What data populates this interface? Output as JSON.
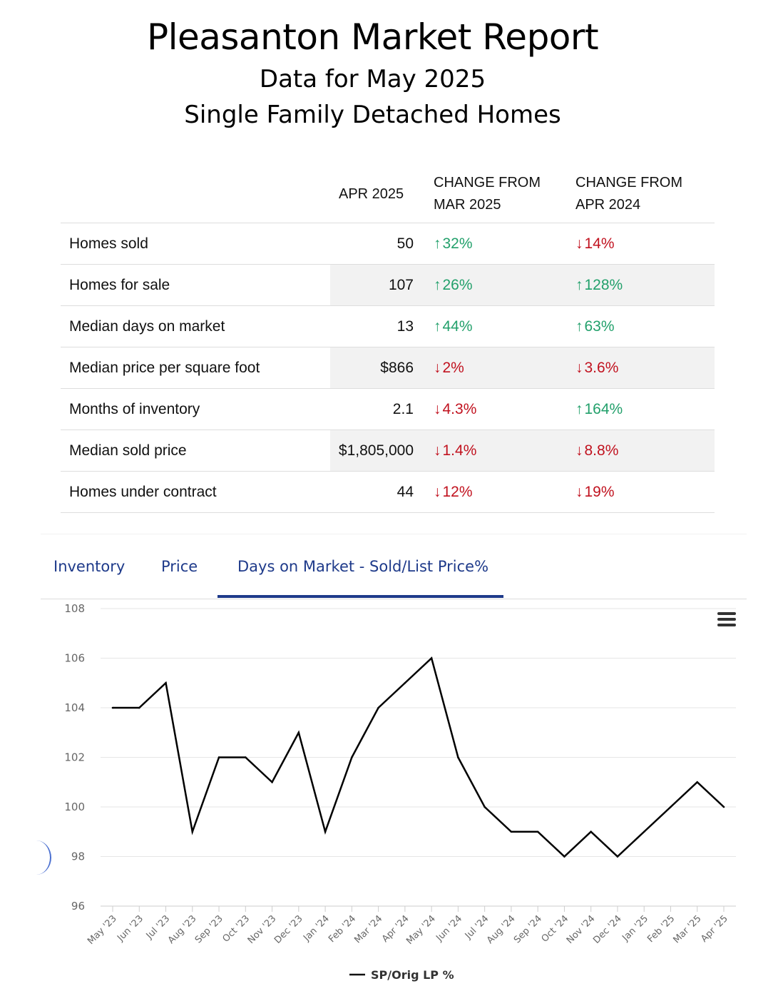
{
  "header": {
    "title": "Pleasanton Market Report",
    "subtitle1": "Data for May 2025",
    "subtitle2": "Single Family Detached Homes"
  },
  "table": {
    "col_value": "APR 2025",
    "col_change1_line1": "CHANGE FROM",
    "col_change1_line2": "MAR 2025",
    "col_change2_line1": "CHANGE FROM",
    "col_change2_line2": "APR 2024",
    "rows": [
      {
        "label": "Homes sold",
        "value": "50",
        "ch1": "32%",
        "ch1_dir": "up",
        "ch2": "14%",
        "ch2_dir": "down"
      },
      {
        "label": "Homes for sale",
        "value": "107",
        "ch1": "26%",
        "ch1_dir": "up",
        "ch2": "128%",
        "ch2_dir": "up"
      },
      {
        "label": "Median days on market",
        "value": "13",
        "ch1": "44%",
        "ch1_dir": "up",
        "ch2": "63%",
        "ch2_dir": "up"
      },
      {
        "label": "Median price per square foot",
        "value": "$866",
        "ch1": "2%",
        "ch1_dir": "down",
        "ch2": "3.6%",
        "ch2_dir": "down"
      },
      {
        "label": "Months of inventory",
        "value": "2.1",
        "ch1": "4.3%",
        "ch1_dir": "down",
        "ch2": "164%",
        "ch2_dir": "up"
      },
      {
        "label": "Median sold price",
        "value": "$1,805,000",
        "ch1": "1.4%",
        "ch1_dir": "down",
        "ch2": "8.8%",
        "ch2_dir": "down"
      },
      {
        "label": "Homes under contract",
        "value": "44",
        "ch1": "12%",
        "ch1_dir": "down",
        "ch2": "19%",
        "ch2_dir": "down"
      }
    ],
    "colors": {
      "up": "#22a06b",
      "down": "#c1121f"
    },
    "icons": {
      "up": "arrow-up-icon",
      "down": "arrow-down-icon"
    }
  },
  "tabs": [
    {
      "label": "Inventory",
      "active": false
    },
    {
      "label": "Price",
      "active": false
    },
    {
      "label": "Days on Market - Sold/List Price%",
      "active": true
    }
  ],
  "accent_color": "#1e3a8a",
  "menu_icon": "hamburger-menu-icon",
  "chart_data": {
    "type": "line",
    "categories": [
      "May '23",
      "Jun '23",
      "Jul '23",
      "Aug '23",
      "Sep '23",
      "Oct '23",
      "Nov '23",
      "Dec '23",
      "Jan '24",
      "Feb '24",
      "Mar '24",
      "Apr '24",
      "May '24",
      "Jun '24",
      "Jul '24",
      "Aug '24",
      "Sep '24",
      "Oct '24",
      "Nov '24",
      "Dec '24",
      "Jan '25",
      "Feb '25",
      "Mar '25",
      "Apr '25"
    ],
    "series": [
      {
        "name": "SP/Orig LP %",
        "values": [
          104,
          104,
          105,
          99,
          102,
          102,
          101,
          103,
          99,
          102,
          104,
          105,
          106,
          102,
          100,
          99,
          99,
          98,
          99,
          98,
          99,
          100,
          101,
          100
        ]
      }
    ],
    "yticks": [
      96,
      98,
      100,
      102,
      104,
      106,
      108
    ],
    "ylim": [
      96,
      108
    ],
    "grid": true,
    "legend": "bottom-center",
    "line_color": "#000000"
  }
}
